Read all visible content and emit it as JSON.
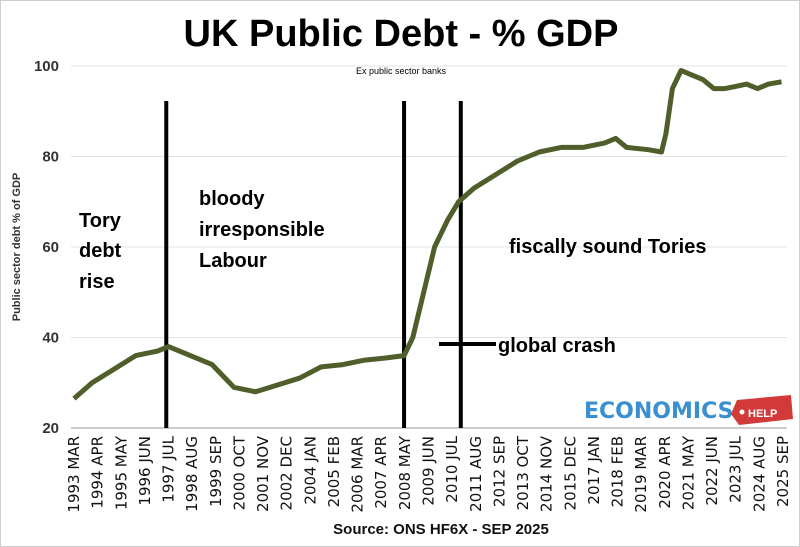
{
  "chart_data": {
    "type": "line",
    "title": "UK Public Debt - % GDP",
    "subtitle": "Ex public sector banks",
    "xlabel": "",
    "ylabel": "Public sector debt % of GDP",
    "source": "Source: ONS HF6X - SEP 2025",
    "ylim": [
      20,
      100
    ],
    "yticks": [
      20,
      40,
      60,
      80,
      100
    ],
    "grid": true,
    "xtick_labels": [
      "1993 MAR",
      "1994 APR",
      "1995 MAY",
      "1996 JUN",
      "1997 JUL",
      "1998 AUG",
      "1999 SEP",
      "2000 OCT",
      "2001 NOV",
      "2002 DEC",
      "2004 JAN",
      "2005 FEB",
      "2006 MAR",
      "2007 APR",
      "2008 MAY",
      "2009 JUN",
      "2010 JUL",
      "2011 AUG",
      "2012 SEP",
      "2013 OCT",
      "2014 NOV",
      "2015 DEC",
      "2017 JAN",
      "2018 FEB",
      "2019 MAR",
      "2020 APR",
      "2021 MAY",
      "2022 JUN",
      "2023 JUL",
      "2024 AUG",
      "2025 SEP"
    ],
    "xlim": [
      1993.17,
      2025.67
    ],
    "series": [
      {
        "name": "Public sector debt % of GDP",
        "color": "#4f5e2a",
        "x": [
          1993.17,
          1994,
          1995,
          1996,
          1997,
          1997.5,
          1998.5,
          1999.5,
          2000.5,
          2001.5,
          2002.5,
          2003.5,
          2004.5,
          2005.5,
          2006.5,
          2007.5,
          2008.3,
          2008.7,
          2009.2,
          2009.7,
          2010.3,
          2010.8,
          2011.5,
          2012.5,
          2013.5,
          2014.5,
          2015.5,
          2016.5,
          2017.5,
          2018,
          2018.5,
          2019.5,
          2020.1,
          2020.3,
          2020.6,
          2021,
          2021.5,
          2022,
          2022.5,
          2023,
          2023.5,
          2024,
          2024.5,
          2025,
          2025.6
        ],
        "y": [
          26.5,
          30,
          33,
          36,
          37,
          38,
          36,
          34,
          29,
          28,
          29.5,
          31,
          33.5,
          34,
          35,
          35.5,
          36,
          40,
          50,
          60,
          66,
          70,
          73,
          76,
          79,
          81,
          82,
          82,
          83,
          84,
          82,
          81.5,
          81,
          85,
          95,
          99,
          98,
          97,
          95,
          95,
          95.5,
          96,
          95,
          96,
          96.5
        ]
      }
    ],
    "annotations": [
      {
        "text": [
          "Tory",
          "debt",
          "rise"
        ]
      },
      {
        "text": [
          "bloody",
          "irresponsible",
          "Labour"
        ]
      },
      {
        "text": [
          "fiscally sound Tories"
        ]
      },
      {
        "text": [
          "global crash"
        ]
      }
    ],
    "marker_lines_years": [
      1997.4,
      2008.3,
      2010.9
    ]
  },
  "logo": {
    "main": "ECONOMICS",
    "tag": "HELP",
    "main_color": "#3a8fd0",
    "tag_color": "#d23a3a"
  }
}
